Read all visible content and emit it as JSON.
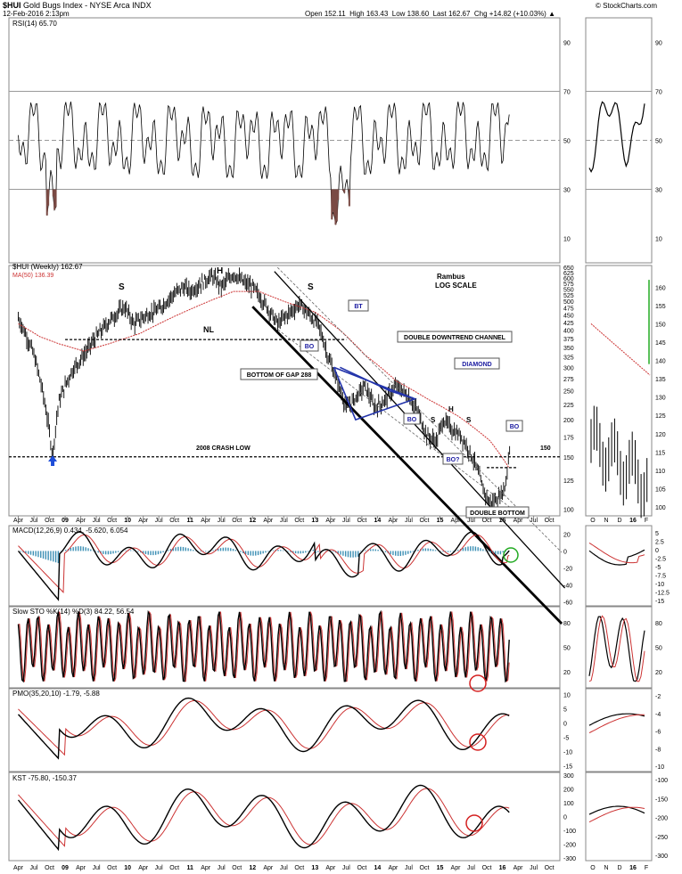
{
  "header": {
    "symbol": "$HUI",
    "name": "Gold Bugs Index - NYSE Arca INDX",
    "date": "12-Feb-2016 2:13pm",
    "open_label": "Open",
    "open": "152.11",
    "high_label": "High",
    "high": "163.43",
    "low_label": "Low",
    "low": "138.60",
    "close_label": "Last",
    "close": "162.67",
    "chg_label": "Chg",
    "chg": "+14.82 (+10.03%)",
    "brand": "© StockCharts.com"
  },
  "colors": {
    "price": "#000000",
    "ma": "#cc3333",
    "annotation": "#1a1aa0",
    "hist": "#3b8fb4",
    "rsi_fill": "#7a4a44",
    "green": "#22aa22",
    "red": "#d42020"
  },
  "x_axis": {
    "month_labels": [
      "Apr",
      "Jul",
      "Oct",
      "09",
      "Apr",
      "Jul",
      "Oct",
      "10",
      "Apr",
      "Jul",
      "Oct",
      "11",
      "Apr",
      "Jul",
      "Oct",
      "12",
      "Apr",
      "Jul",
      "Oct",
      "13",
      "Apr",
      "Jul",
      "Oct",
      "14",
      "Apr",
      "Jul",
      "Oct",
      "15",
      "Apr",
      "Jul",
      "Oct",
      "16",
      "Apr",
      "Jul",
      "Oct"
    ],
    "side_labels": [
      "O",
      "N",
      "D",
      "16",
      "F"
    ]
  },
  "chart_data": [
    {
      "type": "line",
      "label": "RSI(14) 65.70",
      "y_ticks": [
        10,
        30,
        50,
        70,
        90
      ],
      "reference_lines": [
        30,
        50,
        70
      ],
      "ylim": [
        0,
        100
      ],
      "last": 65.7
    },
    {
      "type": "ohlc",
      "label": "$HUI (Weekly) 162.67",
      "ma_label": "MA(50) 136.39",
      "scale": "log",
      "y_ticks": [
        100,
        125,
        150,
        175,
        200,
        225,
        250,
        275,
        300,
        325,
        350,
        375,
        400,
        425,
        450,
        475,
        500,
        525,
        550,
        575,
        600,
        625,
        650
      ],
      "side_y_ticks": [
        100,
        105,
        110,
        115,
        120,
        125,
        130,
        135,
        140,
        145,
        150,
        155,
        160
      ],
      "points": [
        [
          2008.25,
          440
        ],
        [
          2008.5,
          330
        ],
        [
          2008.67,
          230
        ],
        [
          2008.8,
          150
        ],
        [
          2008.9,
          230
        ],
        [
          2009.1,
          290
        ],
        [
          2009.3,
          330
        ],
        [
          2009.5,
          380
        ],
        [
          2009.75,
          440
        ],
        [
          2009.95,
          480
        ],
        [
          2010.1,
          420
        ],
        [
          2010.3,
          450
        ],
        [
          2010.5,
          470
        ],
        [
          2010.7,
          520
        ],
        [
          2010.9,
          560
        ],
        [
          2011.0,
          540
        ],
        [
          2011.2,
          580
        ],
        [
          2011.35,
          610
        ],
        [
          2011.5,
          560
        ],
        [
          2011.7,
          620
        ],
        [
          2011.85,
          580
        ],
        [
          2012.0,
          560
        ],
        [
          2012.2,
          490
        ],
        [
          2012.4,
          420
        ],
        [
          2012.55,
          450
        ],
        [
          2012.75,
          490
        ],
        [
          2012.95,
          440
        ],
        [
          2013.05,
          420
        ],
        [
          2013.2,
          330
        ],
        [
          2013.35,
          270
        ],
        [
          2013.5,
          220
        ],
        [
          2013.6,
          230
        ],
        [
          2013.8,
          260
        ],
        [
          2013.95,
          220
        ],
        [
          2014.1,
          230
        ],
        [
          2014.3,
          260
        ],
        [
          2014.5,
          240
        ],
        [
          2014.65,
          210
        ],
        [
          2014.8,
          175
        ],
        [
          2014.95,
          170
        ],
        [
          2015.05,
          200
        ],
        [
          2015.2,
          185
        ],
        [
          2015.35,
          175
        ],
        [
          2015.55,
          145
        ],
        [
          2015.7,
          115
        ],
        [
          2015.8,
          105
        ],
        [
          2015.95,
          110
        ],
        [
          2016.05,
          120
        ],
        [
          2016.12,
          162.67
        ]
      ],
      "ma_points": [
        [
          2008.25,
          420
        ],
        [
          2008.6,
          380
        ],
        [
          2008.9,
          360
        ],
        [
          2009.3,
          340
        ],
        [
          2009.7,
          360
        ],
        [
          2010.2,
          390
        ],
        [
          2010.7,
          440
        ],
        [
          2011.2,
          490
        ],
        [
          2011.7,
          540
        ],
        [
          2012.1,
          540
        ],
        [
          2012.5,
          500
        ],
        [
          2013.0,
          460
        ],
        [
          2013.4,
          400
        ],
        [
          2013.8,
          330
        ],
        [
          2014.3,
          270
        ],
        [
          2014.8,
          235
        ],
        [
          2015.3,
          205
        ],
        [
          2015.8,
          170
        ],
        [
          2016.12,
          136.39
        ]
      ],
      "annotations": [
        "S",
        "H",
        "S",
        "NL",
        "S",
        "H",
        "S",
        "Rambus",
        "LOG SCALE",
        "BT",
        "BO",
        "DOUBLE DOWNTREND CHANNEL",
        "DIAMOND",
        "BOTTOM OF GAP 288",
        "BO",
        "BO",
        "BO?",
        "2008 CRASH LOW",
        "150",
        "DOUBLE BOTTOM"
      ]
    },
    {
      "type": "line",
      "label": "MACD(12,26,9)",
      "macd": "0.434",
      "signal": "-5.620",
      "hist": "6.054",
      "y_ticks": [
        -60,
        -40,
        -20,
        0,
        20
      ],
      "side_y_ticks": [
        5.0,
        2.5,
        0.0,
        -2.5,
        -5.0,
        -7.5,
        -10.0,
        -12.5,
        -15.0
      ],
      "ylim": [
        -65,
        30
      ]
    },
    {
      "type": "line",
      "label": "Slow STO %K(14) %D(3)",
      "k": "84.22",
      "d": "56.54",
      "y_ticks": [
        20,
        50,
        80
      ],
      "ylim": [
        0,
        100
      ]
    },
    {
      "type": "line",
      "label": "PMO(35,20,10)",
      "pmo": "-1.79",
      "signal": "-5.88",
      "y_ticks": [
        -15,
        -10,
        -5,
        0,
        5,
        10
      ],
      "side_y_ticks": [
        -2,
        -4,
        -6,
        -8,
        -10
      ],
      "ylim": [
        -17,
        12
      ]
    },
    {
      "type": "line",
      "label": "KST",
      "kst": "-75.80",
      "signal": "-150.37",
      "y_ticks": [
        -300,
        -200,
        -100,
        0,
        100,
        200,
        300
      ],
      "side_y_ticks": [
        -100,
        -150,
        -200,
        -250,
        -300
      ],
      "ylim": [
        -320,
        320
      ]
    }
  ]
}
